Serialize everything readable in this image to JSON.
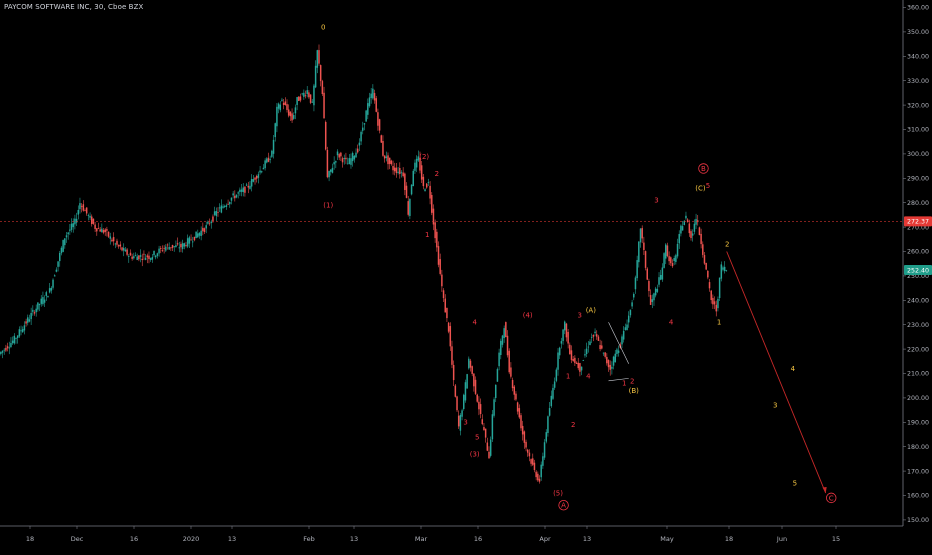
{
  "title": "PAYCOM SOFTWARE INC, 30, Cboe BZX",
  "chart_data": {
    "type": "candlestick",
    "title": "PAYCOM SOFTWARE INC, 30, Cboe BZX",
    "ylim": [
      148,
      362
    ],
    "y_ticks": [
      360,
      350,
      340,
      330,
      320,
      310,
      300,
      290,
      280,
      270,
      260,
      250,
      240,
      230,
      220,
      210,
      200,
      190,
      180,
      170,
      160,
      150
    ],
    "x_ticks": [
      "18",
      "Dec",
      "16",
      "2020",
      "13",
      "Feb",
      "13",
      "Mar",
      "16",
      "Apr",
      "13",
      "May",
      "18",
      "Jun",
      "15"
    ],
    "current_price_label": "252.40",
    "reference_price_label": "272.37",
    "price_path": [
      [
        0,
        218
      ],
      [
        3,
        224
      ],
      [
        7,
        236
      ],
      [
        10,
        244
      ],
      [
        13,
        266
      ],
      [
        15,
        272
      ],
      [
        16,
        280
      ],
      [
        19,
        270
      ],
      [
        21,
        268
      ],
      [
        23,
        263
      ],
      [
        26,
        258
      ],
      [
        30,
        258
      ],
      [
        33,
        262
      ],
      [
        36,
        262
      ],
      [
        38,
        265
      ],
      [
        41,
        270
      ],
      [
        43,
        276
      ],
      [
        46,
        282
      ],
      [
        49,
        286
      ],
      [
        52,
        294
      ],
      [
        54,
        300
      ],
      [
        55,
        318
      ],
      [
        56,
        322
      ],
      [
        58,
        314
      ],
      [
        59,
        322
      ],
      [
        61,
        326
      ],
      [
        62,
        320
      ],
      [
        63,
        342
      ],
      [
        64,
        325
      ],
      [
        65,
        290
      ],
      [
        67,
        300
      ],
      [
        69,
        296
      ],
      [
        71,
        302
      ],
      [
        73,
        320
      ],
      [
        74,
        326
      ],
      [
        76,
        300
      ],
      [
        78,
        294
      ],
      [
        80,
        292
      ],
      [
        81,
        276
      ],
      [
        82,
        294
      ],
      [
        83,
        298
      ],
      [
        84,
        286
      ],
      [
        85,
        288
      ],
      [
        87,
        256
      ],
      [
        88,
        240
      ],
      [
        89,
        228
      ],
      [
        90,
        206
      ],
      [
        91,
        188
      ],
      [
        92,
        200
      ],
      [
        93,
        216
      ],
      [
        95,
        196
      ],
      [
        97,
        176
      ],
      [
        98,
        200
      ],
      [
        99,
        218
      ],
      [
        100,
        230
      ],
      [
        101,
        212
      ],
      [
        102,
        202
      ],
      [
        104,
        182
      ],
      [
        106,
        170
      ],
      [
        107,
        166
      ],
      [
        108,
        182
      ],
      [
        109,
        196
      ],
      [
        110,
        208
      ],
      [
        111,
        222
      ],
      [
        112,
        230
      ],
      [
        113,
        218
      ],
      [
        115,
        212
      ],
      [
        117,
        224
      ],
      [
        118,
        226
      ],
      [
        120,
        216
      ],
      [
        121,
        212
      ],
      [
        122,
        218
      ],
      [
        123,
        222
      ],
      [
        125,
        236
      ],
      [
        126,
        248
      ],
      [
        127,
        270
      ],
      [
        128,
        254
      ],
      [
        129,
        238
      ],
      [
        131,
        250
      ],
      [
        132,
        262
      ],
      [
        133,
        254
      ],
      [
        134,
        258
      ],
      [
        135,
        270
      ],
      [
        136,
        274
      ],
      [
        137,
        266
      ],
      [
        138,
        274
      ],
      [
        139,
        264
      ],
      [
        140,
        252
      ],
      [
        141,
        240
      ],
      [
        142,
        236
      ],
      [
        143,
        254
      ],
      [
        144,
        252.4
      ]
    ],
    "wave_labels": [
      {
        "text": "0",
        "price": 351,
        "color": "yellow"
      },
      {
        "text": "(1)",
        "price": 278,
        "color": "red"
      },
      {
        "text": "(2)",
        "price": 298,
        "color": "red"
      },
      {
        "text": "2",
        "price": 291,
        "color": "red"
      },
      {
        "text": "1",
        "price": 266,
        "color": "red"
      },
      {
        "text": "4",
        "price": 230,
        "color": "red"
      },
      {
        "text": "3",
        "price": 189,
        "color": "red"
      },
      {
        "text": "5",
        "price": 183,
        "color": "red"
      },
      {
        "text": "(3)",
        "price": 176,
        "color": "red"
      },
      {
        "text": "(4)",
        "price": 233,
        "color": "red"
      },
      {
        "text": "(5)",
        "price": 160,
        "color": "red"
      },
      {
        "text": "A",
        "price": 155,
        "color": "red",
        "circled": true
      },
      {
        "text": "1",
        "price": 208,
        "color": "red"
      },
      {
        "text": "2",
        "price": 188,
        "color": "red"
      },
      {
        "text": "3",
        "price": 233,
        "color": "red"
      },
      {
        "text": "4",
        "price": 208,
        "color": "red"
      },
      {
        "text": "(A)",
        "price": 235,
        "color": "yellow"
      },
      {
        "text": "(B)",
        "price": 202,
        "color": "yellow"
      },
      {
        "text": "1",
        "price": 205,
        "color": "red"
      },
      {
        "text": "2",
        "price": 206,
        "color": "red"
      },
      {
        "text": "3",
        "price": 280,
        "color": "red"
      },
      {
        "text": "4",
        "price": 230,
        "color": "red"
      },
      {
        "text": "(C)",
        "price": 285,
        "color": "yellow"
      },
      {
        "text": "5",
        "price": 286,
        "color": "red"
      },
      {
        "text": "B",
        "price": 293,
        "color": "red",
        "circled": true
      },
      {
        "text": "1",
        "price": 230,
        "color": "yellow"
      },
      {
        "text": "2",
        "price": 262,
        "color": "yellow"
      },
      {
        "text": "4",
        "price": 211,
        "color": "yellow"
      },
      {
        "text": "3",
        "price": 196,
        "color": "yellow"
      },
      {
        "text": "5",
        "price": 164,
        "color": "yellow"
      },
      {
        "text": "C",
        "price": 158,
        "color": "red",
        "circled": true
      }
    ],
    "colors": {
      "background": "#000000",
      "up": "#26a69a",
      "down": "#ef5350",
      "wave_red": "#f23645",
      "wave_yellow": "#f5c542",
      "axis_text": "#b2b5be",
      "reference_line": "#e53935",
      "current_tag": "#1f9d8a",
      "reference_tag": "#e53935",
      "projection_line": "#c62828"
    }
  }
}
